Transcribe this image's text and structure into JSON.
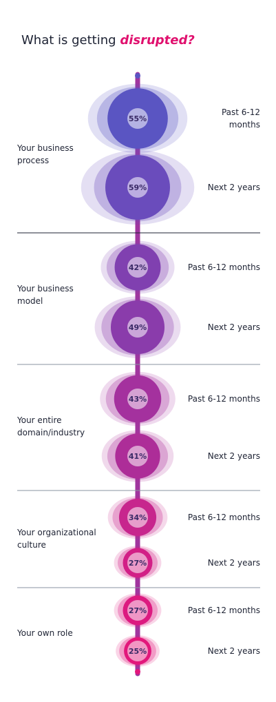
{
  "title": {
    "prefix": "What is getting",
    "highlight": "disrupted?"
  },
  "chart_data": {
    "type": "bubble",
    "title": "What is getting disrupted?",
    "categories": [
      "Your business process",
      "Your business model",
      "Your entire domain/industry",
      "Your organizational culture",
      "Your own role"
    ],
    "series": [
      {
        "name": "Past 6-12 months",
        "values": [
          55,
          42,
          43,
          34,
          27
        ]
      },
      {
        "name": "Next 2 years",
        "values": [
          59,
          49,
          41,
          27,
          25
        ]
      }
    ],
    "value_suffix": "%",
    "groups": [
      {
        "label_lines": [
          "Your business",
          "process"
        ],
        "items": [
          {
            "period_lines": [
              "Past 6-12",
              "months"
            ],
            "value": 55,
            "color": "#5a55c2"
          },
          {
            "period_lines": [
              "Next 2 years"
            ],
            "value": 59,
            "color": "#6a4cbc"
          }
        ]
      },
      {
        "label_lines": [
          "Your business",
          "model"
        ],
        "items": [
          {
            "period_lines": [
              "Past 6-12 months"
            ],
            "value": 42,
            "color": "#8040b0"
          },
          {
            "period_lines": [
              "Next 2 years"
            ],
            "value": 49,
            "color": "#8a3cab"
          }
        ]
      },
      {
        "label_lines": [
          "Your entire",
          "domain/industry"
        ],
        "items": [
          {
            "period_lines": [
              "Past 6-12 months"
            ],
            "value": 43,
            "color": "#a4319e"
          },
          {
            "period_lines": [
              "Next 2 years"
            ],
            "value": 41,
            "color": "#ad2d98"
          }
        ]
      },
      {
        "label_lines": [
          "Your organizational",
          "culture"
        ],
        "items": [
          {
            "period_lines": [
              "Past 6-12 months"
            ],
            "value": 34,
            "color": "#c7268d"
          },
          {
            "period_lines": [
              "Next 2 years"
            ],
            "value": 27,
            "color": "#d21f86"
          }
        ]
      },
      {
        "label_lines": [
          "Your own role"
        ],
        "items": [
          {
            "period_lines": [
              "Past 6-12 months"
            ],
            "value": 27,
            "color": "#dc1a80"
          },
          {
            "period_lines": [
              "Next 2 years"
            ],
            "value": 25,
            "color": "#e2177b"
          }
        ]
      }
    ]
  }
}
